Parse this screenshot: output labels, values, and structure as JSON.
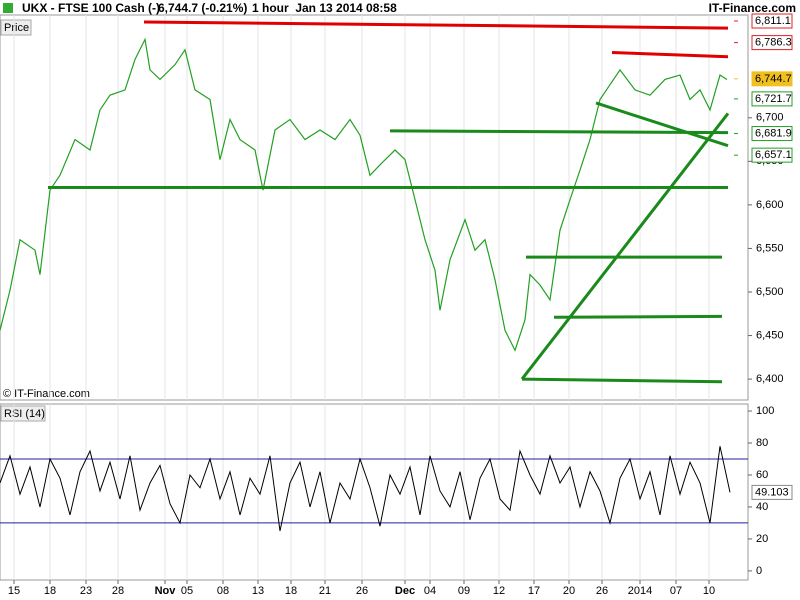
{
  "chart_data": {
    "type": "line",
    "title": "UKX - FTSE 100 Cash (-)",
    "last_quote": "6,744.7 (-0.21%)",
    "interval": "1 hour  Jan 13 2014 08:58",
    "brand": "IT-Finance.com",
    "panel_label": "Price",
    "copyright": "© IT-Finance.com",
    "color": "#22a022",
    "xlim": [
      0,
      374
    ],
    "ylim": [
      6376,
      6818
    ],
    "xticks": [
      {
        "value": 7,
        "label": "15"
      },
      {
        "value": 25,
        "label": "18"
      },
      {
        "value": 43,
        "label": "23"
      },
      {
        "value": 59,
        "label": "28"
      },
      {
        "value": 82.5,
        "label": "Nov"
      },
      {
        "value": 93.5,
        "label": "05"
      },
      {
        "value": 111.5,
        "label": "08"
      },
      {
        "value": 129,
        "label": "13"
      },
      {
        "value": 145.5,
        "label": "18"
      },
      {
        "value": 162.5,
        "label": "21"
      },
      {
        "value": 181,
        "label": "26"
      },
      {
        "value": 202.5,
        "label": "Dec"
      },
      {
        "value": 215,
        "label": "04"
      },
      {
        "value": 232,
        "label": "09"
      },
      {
        "value": 249.5,
        "label": "12"
      },
      {
        "value": 267,
        "label": "17"
      },
      {
        "value": 284.5,
        "label": "20"
      },
      {
        "value": 301,
        "label": "26"
      },
      {
        "value": 320,
        "label": "2014"
      },
      {
        "value": 338,
        "label": "07"
      },
      {
        "value": 354.5,
        "label": "10"
      }
    ],
    "yticks": [
      {
        "value": 6400,
        "label": "6,400"
      },
      {
        "value": 6450,
        "label": "6,450"
      },
      {
        "value": 6500,
        "label": "6,500"
      },
      {
        "value": 6550,
        "label": "6,550"
      },
      {
        "value": 6600,
        "label": "6,600"
      },
      {
        "value": 6650,
        "label": "6,650"
      },
      {
        "value": 6700,
        "label": "6,700"
      }
    ],
    "x": [
      0,
      5,
      10,
      17.5,
      20,
      25,
      30,
      37.5,
      45,
      50,
      55,
      62.5,
      67.5,
      72.5,
      75,
      80,
      87.5,
      92.5,
      97.5,
      105,
      110,
      115,
      120,
      127.5,
      131.5,
      137.5,
      145,
      152.5,
      160,
      167.5,
      175,
      180,
      185,
      190,
      197.5,
      202.5,
      207.5,
      212.5,
      217.5,
      220,
      225,
      232.5,
      237.5,
      242.5,
      247.5,
      252.5,
      257.5,
      262.5,
      265,
      270,
      275,
      280,
      285,
      290,
      295,
      300,
      305,
      310,
      317.5,
      325,
      332.5,
      340,
      345,
      350,
      355,
      360,
      363.5
    ],
    "values": [
      6456,
      6502,
      6560,
      6548,
      6520,
      6617,
      6634,
      6675,
      6663,
      6709,
      6726,
      6732,
      6767,
      6790,
      6755,
      6744,
      6761,
      6778,
      6732,
      6721,
      6652,
      6698,
      6675,
      6663,
      6617,
      6686,
      6698,
      6675,
      6686,
      6675,
      6698,
      6680,
      6634,
      6646,
      6663,
      6652,
      6606,
      6560,
      6525,
      6479,
      6537,
      6583,
      6548,
      6560,
      6514,
      6456,
      6433,
      6468,
      6520,
      6508,
      6491,
      6571,
      6606,
      6640,
      6675,
      6721,
      6738,
      6755,
      6732,
      6726,
      6744,
      6749,
      6721,
      6732,
      6709,
      6749,
      6744
    ],
    "price_markers": [
      {
        "value": 6811.1,
        "label": "6,811.1",
        "color": "#e02020"
      },
      {
        "value": 6786.3,
        "label": "6,786.3",
        "color": "#e02020"
      },
      {
        "value": 6744.7,
        "label": "6,744.7",
        "color": "#f0c020"
      },
      {
        "value": 6721.7,
        "label": "6,721.7",
        "color": "#20a020"
      },
      {
        "value": 6681.9,
        "label": "6,681.9",
        "color": "#20a020"
      },
      {
        "value": 6657.1,
        "label": "6,657.1",
        "color": "#20a020"
      }
    ],
    "trend_lines": [
      {
        "color": "#e00000",
        "x": [
          72,
          364
        ],
        "values": [
          6810,
          6803
        ]
      },
      {
        "color": "#e00000",
        "x": [
          306,
          364
        ],
        "values": [
          6775,
          6770
        ]
      },
      {
        "color": "#1a8a1a",
        "x": [
          24,
          364
        ],
        "values": [
          6620,
          6620
        ]
      },
      {
        "color": "#1a8a1a",
        "x": [
          195,
          364
        ],
        "values": [
          6685,
          6683
        ]
      },
      {
        "color": "#1a8a1a",
        "x": [
          263,
          361
        ],
        "values": [
          6540,
          6540
        ]
      },
      {
        "color": "#1a8a1a",
        "x": [
          277,
          361
        ],
        "values": [
          6471,
          6472
        ]
      },
      {
        "color": "#1a8a1a",
        "x": [
          261,
          361
        ],
        "values": [
          6400,
          6397
        ]
      },
      {
        "color": "#1a8a1a",
        "x": [
          261,
          364
        ],
        "values": [
          6400,
          6705
        ]
      },
      {
        "color": "#1a8a1a",
        "x": [
          298,
          364
        ],
        "values": [
          6717,
          6668
        ]
      }
    ],
    "rsi": {
      "label": "RSI (14)",
      "color": "#000000",
      "ylim": [
        -5.7,
        104.4
      ],
      "yticks": [
        0,
        20,
        40,
        60,
        80,
        100
      ],
      "levels": [
        30,
        70
      ],
      "current": {
        "value": 49.103,
        "label": "49.103"
      },
      "x": [
        0,
        5,
        10,
        15,
        20,
        25,
        30,
        35,
        40,
        45,
        50,
        55,
        60,
        65,
        70,
        75,
        80,
        85,
        90,
        95,
        100,
        105,
        110,
        115,
        120,
        125,
        130,
        135,
        140,
        145,
        150,
        155,
        160,
        165,
        170,
        175,
        180,
        185,
        190,
        195,
        200,
        205,
        210,
        215,
        220,
        225,
        230,
        235,
        240,
        245,
        250,
        255,
        260,
        265,
        270,
        275,
        280,
        285,
        290,
        295,
        300,
        305,
        310,
        315,
        320,
        325,
        330,
        335,
        340,
        345,
        350,
        355,
        360,
        365
      ],
      "values": [
        55,
        72,
        48,
        65,
        40,
        70,
        58,
        35,
        62,
        75,
        50,
        68,
        45,
        72,
        38,
        55,
        66,
        42,
        30,
        60,
        52,
        70,
        45,
        62,
        35,
        58,
        48,
        72,
        25,
        55,
        68,
        40,
        62,
        30,
        55,
        45,
        70,
        52,
        28,
        60,
        48,
        65,
        35,
        72,
        50,
        40,
        62,
        32,
        58,
        70,
        45,
        38,
        75,
        60,
        48,
        72,
        55,
        65,
        40,
        62,
        50,
        30,
        58,
        70,
        45,
        62,
        35,
        72,
        48,
        68,
        55,
        30,
        78,
        49.103
      ]
    }
  }
}
